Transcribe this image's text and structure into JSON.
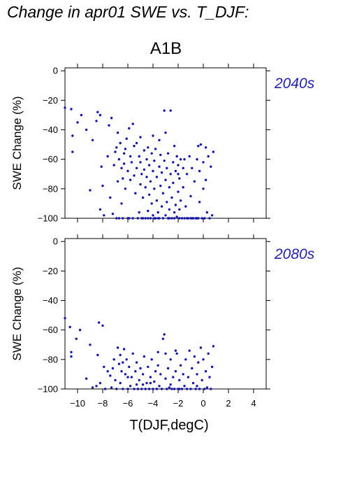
{
  "title": "Change in apr01 SWE vs. T_DJF:",
  "scenario": "A1B",
  "colors": {
    "points": "#1414a8",
    "panel_label": "#2222aa"
  },
  "chart_data": [
    {
      "type": "scatter",
      "panel_label": "2040s",
      "xlabel": "",
      "ylabel": "SWE Change (%)",
      "xlim": [
        -11,
        5
      ],
      "ylim": [
        -100,
        2
      ],
      "xticks": [
        -10,
        -8,
        -6,
        -4,
        -2,
        0,
        2,
        4
      ],
      "yticks": [
        0,
        -20,
        -40,
        -60,
        -80,
        -100
      ],
      "show_x_ticklabels": false,
      "grid": false,
      "points": [
        [
          -11.0,
          -25
        ],
        [
          -10.5,
          -26
        ],
        [
          -10.4,
          -44
        ],
        [
          -10.4,
          -55
        ],
        [
          -10.0,
          -35
        ],
        [
          -9.7,
          -30
        ],
        [
          -9.3,
          -40
        ],
        [
          -9.0,
          -81
        ],
        [
          -8.8,
          -47
        ],
        [
          -8.5,
          -34
        ],
        [
          -8.4,
          -28
        ],
        [
          -8.2,
          -30
        ],
        [
          -8.2,
          -94
        ],
        [
          -8.1,
          -65
        ],
        [
          -8.0,
          -78
        ],
        [
          -7.9,
          -98
        ],
        [
          -7.6,
          -58
        ],
        [
          -7.5,
          -37
        ],
        [
          -7.4,
          -86
        ],
        [
          -7.3,
          -32
        ],
        [
          -7.2,
          -97
        ],
        [
          -7.1,
          -64
        ],
        [
          -7.0,
          -55
        ],
        [
          -6.9,
          -100
        ],
        [
          -6.8,
          -75
        ],
        [
          -6.8,
          -42
        ],
        [
          -6.7,
          -60
        ],
        [
          -6.6,
          -49
        ],
        [
          -6.5,
          -66
        ],
        [
          -6.5,
          -90
        ],
        [
          -6.4,
          -73
        ],
        [
          -6.4,
          -100
        ],
        [
          -6.3,
          -56
        ],
        [
          -6.2,
          -53
        ],
        [
          -6.2,
          -80
        ],
        [
          -6.1,
          -46
        ],
        [
          -6.0,
          -68
        ],
        [
          -6.0,
          -100
        ],
        [
          -5.9,
          -39
        ],
        [
          -5.8,
          -58
        ],
        [
          -5.8,
          -74
        ],
        [
          -5.7,
          -62
        ],
        [
          -5.6,
          -36
        ],
        [
          -5.6,
          -100
        ],
        [
          -5.5,
          -51
        ],
        [
          -5.5,
          -71
        ],
        [
          -5.4,
          -83
        ],
        [
          -5.3,
          -66
        ],
        [
          -5.3,
          -49
        ],
        [
          -5.2,
          -100
        ],
        [
          -5.1,
          -58
        ],
        [
          -5.0,
          -77
        ],
        [
          -5.0,
          -62
        ],
        [
          -4.9,
          -70
        ],
        [
          -4.9,
          -100
        ],
        [
          -4.8,
          -86
        ],
        [
          -4.7,
          -54
        ],
        [
          -4.7,
          -67
        ],
        [
          -4.6,
          -100
        ],
        [
          -4.6,
          -79
        ],
        [
          -4.5,
          -60
        ],
        [
          -4.5,
          -72
        ],
        [
          -4.4,
          -95
        ],
        [
          -4.4,
          -52
        ],
        [
          -4.3,
          -84
        ],
        [
          -4.3,
          -64
        ],
        [
          -4.2,
          -100
        ],
        [
          -4.2,
          -75
        ],
        [
          -4.1,
          -56
        ],
        [
          -4.1,
          -90
        ],
        [
          -4.0,
          -68
        ],
        [
          -4.0,
          -98
        ],
        [
          -3.9,
          -80
        ],
        [
          -3.9,
          -61
        ],
        [
          -3.8,
          -100
        ],
        [
          -3.8,
          -53
        ],
        [
          -3.7,
          -72
        ],
        [
          -3.7,
          -88
        ],
        [
          -3.6,
          -96
        ],
        [
          -3.5,
          -65
        ],
        [
          -3.5,
          -100
        ],
        [
          -3.4,
          -78
        ],
        [
          -3.4,
          -57
        ],
        [
          -3.3,
          -92
        ],
        [
          -3.3,
          -69
        ],
        [
          -3.2,
          -100
        ],
        [
          -3.2,
          -83
        ],
        [
          -3.1,
          -61
        ],
        [
          -3.1,
          -27
        ],
        [
          -3.0,
          -74
        ],
        [
          -3.0,
          -98
        ],
        [
          -3.0,
          -42
        ],
        [
          -2.9,
          -89
        ],
        [
          -2.9,
          -66
        ],
        [
          -2.8,
          -100
        ],
        [
          -2.8,
          -56
        ],
        [
          -2.7,
          -79
        ],
        [
          -2.7,
          -94
        ],
        [
          -2.6,
          -70
        ],
        [
          -2.6,
          -27
        ],
        [
          -2.5,
          -100
        ],
        [
          -2.5,
          -86
        ],
        [
          -2.4,
          -62
        ],
        [
          -2.4,
          -76
        ],
        [
          -2.3,
          -100
        ],
        [
          -2.2,
          -68
        ],
        [
          -2.2,
          -91
        ],
        [
          -2.1,
          -58
        ],
        [
          -2.1,
          -99
        ],
        [
          -2.0,
          -82
        ],
        [
          -2.0,
          -64
        ],
        [
          -1.9,
          -100
        ],
        [
          -1.9,
          -73
        ],
        [
          -1.8,
          -88
        ],
        [
          -1.8,
          -60
        ],
        [
          -1.7,
          -100
        ],
        [
          -1.6,
          -66
        ],
        [
          -1.6,
          -79
        ],
        [
          -1.5,
          -100
        ],
        [
          -1.4,
          -92
        ],
        [
          -1.3,
          -70
        ],
        [
          -1.2,
          -100
        ],
        [
          -1.1,
          -58
        ],
        [
          -1.0,
          -85
        ],
        [
          -1.0,
          -100
        ],
        [
          -0.9,
          -66
        ],
        [
          -0.8,
          -100
        ],
        [
          -0.7,
          -75
        ],
        [
          -0.6,
          -100
        ],
        [
          -0.5,
          -60
        ],
        [
          -0.4,
          -51
        ],
        [
          -0.4,
          -100
        ],
        [
          -0.3,
          -89
        ],
        [
          -0.3,
          -68
        ],
        [
          -0.2,
          -50
        ],
        [
          -0.1,
          -100
        ],
        [
          0.0,
          -80
        ],
        [
          0.0,
          -62
        ],
        [
          0.1,
          -100
        ],
        [
          0.2,
          -74
        ],
        [
          0.3,
          -96
        ],
        [
          0.4,
          -58
        ],
        [
          0.5,
          -100
        ],
        [
          0.6,
          -65
        ],
        [
          0.7,
          -98
        ],
        [
          0.8,
          -55
        ],
        [
          0.2,
          -52
        ],
        [
          -0.5,
          -100
        ],
        [
          -1.3,
          -100
        ],
        [
          -2.3,
          -96
        ],
        [
          -3.6,
          -100
        ],
        [
          -4.8,
          -100
        ],
        [
          -5.9,
          -100
        ],
        [
          -6.7,
          -100
        ],
        [
          -1.9,
          -94
        ],
        [
          -0.9,
          -100
        ],
        [
          -2.7,
          -100
        ],
        [
          -3.9,
          -100
        ],
        [
          -4.4,
          -100
        ],
        [
          -5.1,
          -96
        ],
        [
          -2.0,
          -70
        ],
        [
          -6.3,
          -63
        ],
        [
          -3.5,
          -47
        ],
        [
          -4.0,
          -44
        ],
        [
          -5.0,
          -45
        ],
        [
          -1.5,
          -60
        ],
        [
          -2.3,
          -51
        ],
        [
          -6.9,
          -52
        ]
      ]
    },
    {
      "type": "scatter",
      "panel_label": "2080s",
      "xlabel": "T(DJF,degC)",
      "ylabel": "SWE Change (%)",
      "xlim": [
        -11,
        5
      ],
      "ylim": [
        -100,
        2
      ],
      "xticks": [
        -10,
        -8,
        -6,
        -4,
        -2,
        0,
        2,
        4
      ],
      "yticks": [
        0,
        -20,
        -40,
        -60,
        -80,
        -100
      ],
      "show_x_ticklabels": true,
      "grid": false,
      "points": [
        [
          -11.0,
          -52
        ],
        [
          -10.6,
          -58
        ],
        [
          -10.5,
          -75
        ],
        [
          -10.5,
          -78
        ],
        [
          -10.1,
          -66
        ],
        [
          -9.8,
          -60
        ],
        [
          -9.3,
          -93
        ],
        [
          -9.0,
          -70
        ],
        [
          -8.8,
          -99
        ],
        [
          -8.5,
          -98
        ],
        [
          -8.4,
          -77
        ],
        [
          -8.3,
          -55
        ],
        [
          -8.2,
          -96
        ],
        [
          -8.0,
          -57
        ],
        [
          -7.9,
          -85
        ],
        [
          -7.8,
          -100
        ],
        [
          -7.6,
          -88
        ],
        [
          -7.4,
          -91
        ],
        [
          -7.3,
          -99
        ],
        [
          -7.2,
          -86
        ],
        [
          -7.1,
          -80
        ],
        [
          -7.0,
          -94
        ],
        [
          -6.9,
          -100
        ],
        [
          -6.8,
          -72
        ],
        [
          -6.7,
          -83
        ],
        [
          -6.6,
          -96
        ],
        [
          -6.5,
          -88
        ],
        [
          -6.4,
          -100
        ],
        [
          -6.3,
          -73
        ],
        [
          -6.2,
          -90
        ],
        [
          -6.1,
          -80
        ],
        [
          -6.0,
          -100
        ],
        [
          -5.9,
          -85
        ],
        [
          -5.8,
          -98
        ],
        [
          -5.7,
          -92
        ],
        [
          -5.6,
          -76
        ],
        [
          -5.5,
          -100
        ],
        [
          -5.4,
          -88
        ],
        [
          -5.3,
          -82
        ],
        [
          -5.2,
          -100
        ],
        [
          -5.1,
          -94
        ],
        [
          -5.0,
          -86
        ],
        [
          -4.9,
          -100
        ],
        [
          -4.8,
          -90
        ],
        [
          -4.7,
          -78
        ],
        [
          -4.6,
          -100
        ],
        [
          -4.5,
          -96
        ],
        [
          -4.4,
          -85
        ],
        [
          -4.3,
          -100
        ],
        [
          -4.2,
          -92
        ],
        [
          -4.1,
          -80
        ],
        [
          -4.0,
          -100
        ],
        [
          -3.9,
          -95
        ],
        [
          -3.8,
          -88
        ],
        [
          -3.7,
          -100
        ],
        [
          -3.6,
          -84
        ],
        [
          -3.5,
          -98
        ],
        [
          -3.4,
          -90
        ],
        [
          -3.3,
          -100
        ],
        [
          -3.2,
          -66
        ],
        [
          -3.1,
          -63
        ],
        [
          -3.0,
          -93
        ],
        [
          -2.9,
          -100
        ],
        [
          -2.8,
          -86
        ],
        [
          -2.7,
          -99
        ],
        [
          -2.6,
          -80
        ],
        [
          -2.5,
          -100
        ],
        [
          -2.4,
          -92
        ],
        [
          -2.3,
          -100
        ],
        [
          -2.2,
          -88
        ],
        [
          -2.1,
          -76
        ],
        [
          -2.0,
          -100
        ],
        [
          -1.9,
          -94
        ],
        [
          -1.8,
          -84
        ],
        [
          -1.7,
          -100
        ],
        [
          -1.6,
          -90
        ],
        [
          -1.5,
          -98
        ],
        [
          -1.4,
          -80
        ],
        [
          -1.3,
          -100
        ],
        [
          -1.2,
          -92
        ],
        [
          -1.1,
          -74
        ],
        [
          -1.0,
          -100
        ],
        [
          -0.9,
          -86
        ],
        [
          -0.8,
          -96
        ],
        [
          -0.7,
          -78
        ],
        [
          -0.6,
          -100
        ],
        [
          -0.5,
          -90
        ],
        [
          -0.4,
          -82
        ],
        [
          -0.3,
          -100
        ],
        [
          -0.2,
          -72
        ],
        [
          -0.1,
          -94
        ],
        [
          0.0,
          -80
        ],
        [
          0.1,
          -100
        ],
        [
          0.2,
          -88
        ],
        [
          0.3,
          -99
        ],
        [
          0.4,
          -76
        ],
        [
          0.5,
          -92
        ],
        [
          0.6,
          -100
        ],
        [
          0.7,
          -85
        ],
        [
          0.8,
          -71
        ],
        [
          -3.6,
          -75
        ],
        [
          -2.6,
          -97
        ],
        [
          -4.2,
          -96
        ],
        [
          -5.3,
          -97
        ],
        [
          -6.0,
          -92
        ],
        [
          -6.6,
          -77
        ],
        [
          -1.9,
          -100
        ],
        [
          -0.5,
          -98
        ],
        [
          -3.0,
          -76
        ],
        [
          -4.8,
          -97
        ],
        [
          -6.4,
          -82
        ],
        [
          -2.2,
          -74
        ]
      ]
    }
  ]
}
